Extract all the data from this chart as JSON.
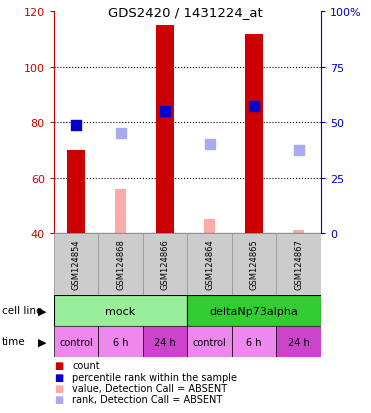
{
  "title": "GDS2420 / 1431224_at",
  "samples": [
    "GSM124854",
    "GSM124868",
    "GSM124866",
    "GSM124864",
    "GSM124865",
    "GSM124867"
  ],
  "count_values": [
    70,
    null,
    115,
    null,
    112,
    null
  ],
  "count_absent_values": [
    null,
    56,
    null,
    45,
    null,
    41
  ],
  "rank_values_left": [
    79,
    null,
    84,
    null,
    86,
    null
  ],
  "rank_absent_values_left": [
    null,
    76,
    null,
    72,
    null,
    70
  ],
  "count_color": "#cc0000",
  "count_absent_color": "#ffaaaa",
  "rank_color": "#0000cc",
  "rank_absent_color": "#aaaaee",
  "ylim_left": [
    40,
    120
  ],
  "ylim_right": [
    0,
    100
  ],
  "yticks_left": [
    40,
    60,
    80,
    100,
    120
  ],
  "yticks_right": [
    0,
    25,
    50,
    75,
    100
  ],
  "ytick_labels_left": [
    "40",
    "60",
    "80",
    "100",
    "120"
  ],
  "ytick_labels_right": [
    "0",
    "25",
    "50",
    "75",
    "100%"
  ],
  "cell_line_groups": [
    {
      "label": "mock",
      "start": 0,
      "end": 3,
      "color": "#99ee99"
    },
    {
      "label": "deltaNp73alpha",
      "start": 3,
      "end": 6,
      "color": "#33cc33"
    }
  ],
  "time_labels": [
    "control",
    "6 h",
    "24 h",
    "control",
    "6 h",
    "24 h"
  ],
  "time_colors": [
    "#ee88ee",
    "#ee88ee",
    "#cc44cc",
    "#ee88ee",
    "#ee88ee",
    "#cc44cc"
  ],
  "legend_items": [
    {
      "label": "count",
      "color": "#cc0000"
    },
    {
      "label": "percentile rank within the sample",
      "color": "#0000cc"
    },
    {
      "label": "value, Detection Call = ABSENT",
      "color": "#ffaaaa"
    },
    {
      "label": "rank, Detection Call = ABSENT",
      "color": "#aaaaee"
    }
  ],
  "bar_width": 0.4,
  "rank_marker_size": 55,
  "ytick_left_color": "#cc0000",
  "ytick_right_color": "#0000bb"
}
